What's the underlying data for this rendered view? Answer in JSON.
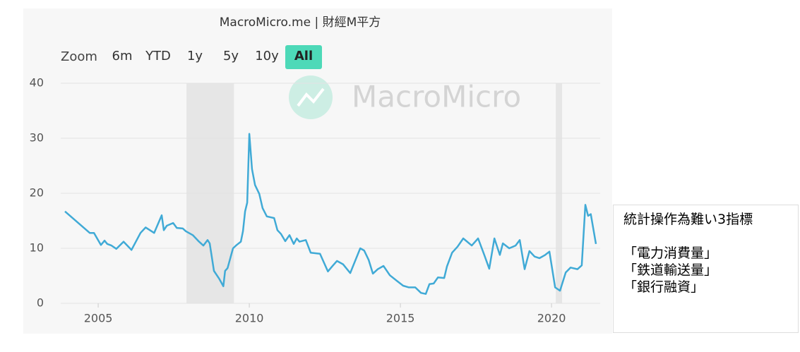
{
  "chart_data": {
    "type": "line",
    "title": "MacroMicro.me | 財經M平方",
    "x": [
      2003.9,
      2004.72,
      2004.86,
      2005.09,
      2005.21,
      2005.3,
      2005.44,
      2005.6,
      2005.84,
      2006.1,
      2006.4,
      2006.57,
      2006.85,
      2007.1,
      2007.17,
      2007.27,
      2007.48,
      2007.6,
      2007.8,
      2007.9,
      2008.13,
      2008.32,
      2008.48,
      2008.62,
      2008.69,
      2008.83,
      2009.0,
      2009.14,
      2009.2,
      2009.28,
      2009.46,
      2009.58,
      2009.72,
      2009.79,
      2009.86,
      2009.93,
      2010.0,
      2010.09,
      2010.19,
      2010.33,
      2010.44,
      2010.58,
      2010.82,
      2010.93,
      2011.05,
      2011.19,
      2011.33,
      2011.47,
      2011.57,
      2011.66,
      2011.87,
      2012.03,
      2012.34,
      2012.6,
      2012.74,
      2012.9,
      2013.1,
      2013.34,
      2013.67,
      2013.8,
      2013.95,
      2014.09,
      2014.25,
      2014.44,
      2014.65,
      2014.88,
      2015.09,
      2015.28,
      2015.49,
      2015.68,
      2015.84,
      2015.96,
      2016.1,
      2016.24,
      2016.45,
      2016.54,
      2016.71,
      2016.89,
      2017.08,
      2017.36,
      2017.57,
      2017.78,
      2017.94,
      2018.11,
      2018.29,
      2018.39,
      2018.6,
      2018.81,
      2018.95,
      2019.11,
      2019.27,
      2019.44,
      2019.6,
      2019.79,
      2019.93,
      2020.12,
      2020.28,
      2020.47,
      2020.63,
      2020.86,
      2021.0,
      2021.12,
      2021.21,
      2021.3,
      2021.47
    ],
    "values": [
      16.7,
      12.8,
      12.8,
      10.6,
      11.4,
      10.8,
      10.5,
      9.9,
      11.2,
      9.7,
      12.8,
      13.8,
      12.8,
      16.0,
      13.3,
      14.1,
      14.6,
      13.7,
      13.6,
      13.1,
      12.4,
      11.3,
      10.5,
      11.5,
      10.9,
      5.9,
      4.5,
      3.1,
      5.9,
      6.4,
      10.0,
      10.6,
      11.2,
      13.1,
      16.7,
      18.3,
      30.8,
      24.4,
      21.5,
      19.9,
      17.3,
      15.8,
      15.5,
      13.3,
      12.6,
      11.3,
      12.4,
      10.8,
      11.8,
      11.2,
      11.5,
      9.2,
      9.0,
      5.8,
      6.7,
      7.7,
      7.1,
      5.5,
      10.0,
      9.6,
      7.9,
      5.4,
      6.2,
      6.8,
      5.1,
      4.1,
      3.2,
      2.9,
      2.9,
      1.9,
      1.7,
      3.5,
      3.6,
      4.7,
      4.6,
      6.7,
      9.2,
      10.3,
      11.8,
      10.5,
      11.8,
      8.7,
      6.3,
      11.8,
      8.8,
      10.9,
      10.0,
      10.5,
      11.5,
      6.2,
      9.5,
      8.5,
      8.2,
      8.8,
      9.4,
      2.9,
      2.3,
      5.6,
      6.5,
      6.2,
      6.9,
      17.9,
      15.9,
      16.2,
      10.8
    ],
    "color": "#40aad6",
    "bands": [
      [
        2007.92,
        2009.49
      ],
      [
        2020.14,
        2020.35
      ]
    ],
    "xlim": [
      2003.76,
      2021.61
    ],
    "xticks": [
      2005,
      2010,
      2015,
      2020
    ],
    "ylim": [
      0,
      40
    ],
    "yticks": [
      0,
      10,
      20,
      30,
      40
    ],
    "grid": true
  },
  "zoom": {
    "label": "Zoom",
    "buttons": [
      "6m",
      "YTD",
      "1y",
      "5y",
      "10y",
      "All"
    ],
    "active": 5
  },
  "watermark": "MacroMicro",
  "side_note": {
    "title": "統計操作為難い3指標",
    "items": [
      "「電力消費量」",
      "「鉄道輸送量」",
      "「銀行融資」"
    ]
  }
}
